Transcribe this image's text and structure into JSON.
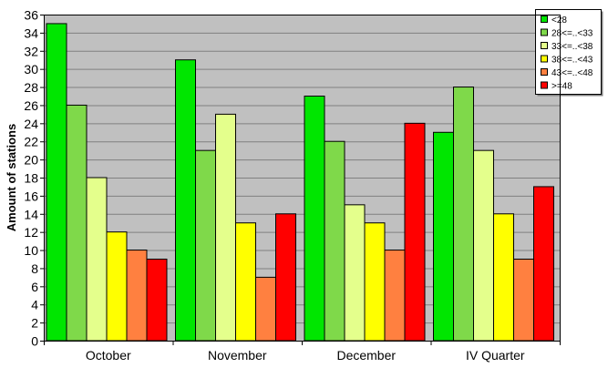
{
  "chart_data": {
    "type": "bar",
    "title": "",
    "xlabel": "",
    "ylabel": "Amount of stations",
    "ylim": [
      0,
      36
    ],
    "ytick_step": 2,
    "grid": true,
    "legend_position": "top-right",
    "categories": [
      "October",
      "November",
      "December",
      "IV Quarter"
    ],
    "series": [
      {
        "name": "<28",
        "color": "#00e600",
        "values": [
          35,
          31,
          27,
          23
        ]
      },
      {
        "name": "28<=..<33",
        "color": "#7fd94a",
        "values": [
          26,
          21,
          22,
          28
        ]
      },
      {
        "name": "33<=..<38",
        "color": "#e4ff8c",
        "values": [
          18,
          25,
          15,
          21
        ]
      },
      {
        "name": "38<=..<43",
        "color": "#ffff00",
        "values": [
          12,
          13,
          13,
          14
        ]
      },
      {
        "name": "43<=..<48",
        "color": "#ff8040",
        "values": [
          10,
          7,
          10,
          9
        ]
      },
      {
        "name": ">=48",
        "color": "#ff0000",
        "values": [
          9,
          14,
          24,
          17
        ]
      }
    ],
    "colors": {
      "plot_background": "#c0c0c0",
      "gridline": "#808080",
      "axis": "#000000"
    }
  }
}
